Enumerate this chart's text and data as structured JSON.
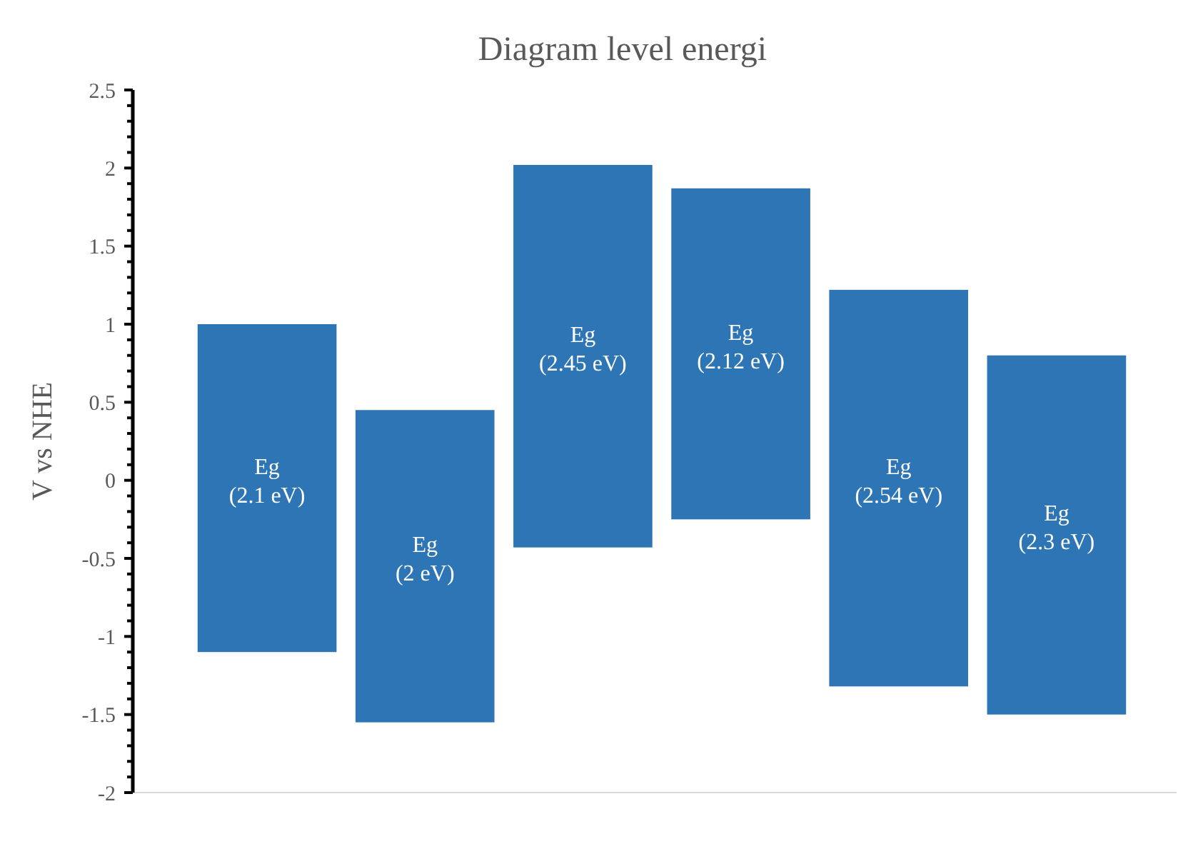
{
  "chart_data": {
    "type": "bar",
    "title": "Diagram level energi",
    "ylabel": "V vs NHE",
    "categories": [
      null,
      null,
      null,
      null,
      null,
      null
    ],
    "base": [
      -1.1,
      -1.55,
      -0.43,
      -0.25,
      -1.32,
      -1.5
    ],
    "values": [
      2.1,
      2,
      2.45,
      2.12,
      2.54,
      2.3
    ],
    "value_labels": [
      "Eg\n(2.1 eV)",
      "Eg\n(2 eV)",
      "Eg\n(2.45 eV)",
      "Eg\n(2.12 eV)",
      "Eg\n(2.54 eV)",
      "Eg\n(2.3 eV)"
    ],
    "color": "#2e75b6",
    "ylim": [
      -2,
      2.5
    ],
    "yticks": [
      -2,
      {
        "value": -1.9,
        "label": null
      },
      {
        "value": -1.8,
        "label": null
      },
      {
        "value": -1.7,
        "label": null
      },
      {
        "value": -1.6,
        "label": null
      },
      -1.5,
      {
        "value": -1.4,
        "label": null
      },
      {
        "value": -1.3,
        "label": null
      },
      {
        "value": -1.2,
        "label": null
      },
      {
        "value": -1.1,
        "label": null
      },
      -1,
      {
        "value": -0.9,
        "label": null
      },
      {
        "value": -0.8,
        "label": null
      },
      {
        "value": -0.7,
        "label": null
      },
      {
        "value": -0.6,
        "label": null
      },
      -0.5,
      {
        "value": -0.4,
        "label": null
      },
      {
        "value": -0.3,
        "label": null
      },
      {
        "value": -0.2,
        "label": null
      },
      {
        "value": -0.1,
        "label": null
      },
      0,
      {
        "value": 0.1,
        "label": null
      },
      {
        "value": 0.2,
        "label": null
      },
      {
        "value": 0.3,
        "label": null
      },
      {
        "value": 0.4,
        "label": null
      },
      0.5,
      {
        "value": 0.6,
        "label": null
      },
      {
        "value": 0.7,
        "label": null
      },
      {
        "value": 0.8,
        "label": null
      },
      {
        "value": 0.9,
        "label": null
      },
      1,
      {
        "value": 1.1,
        "label": null
      },
      {
        "value": 1.2,
        "label": null
      },
      {
        "value": 1.3,
        "label": null
      },
      {
        "value": 1.4,
        "label": null
      },
      1.5,
      {
        "value": 1.6,
        "label": null
      },
      {
        "value": 1.7,
        "label": null
      },
      {
        "value": 1.8,
        "label": null
      },
      {
        "value": 1.9,
        "label": null
      },
      2,
      {
        "value": 2.1,
        "label": null
      },
      {
        "value": 2.2,
        "label": null
      },
      {
        "value": 2.3,
        "label": null
      },
      {
        "value": 2.4,
        "label": null
      },
      2.5
    ],
    "grid": false
  }
}
